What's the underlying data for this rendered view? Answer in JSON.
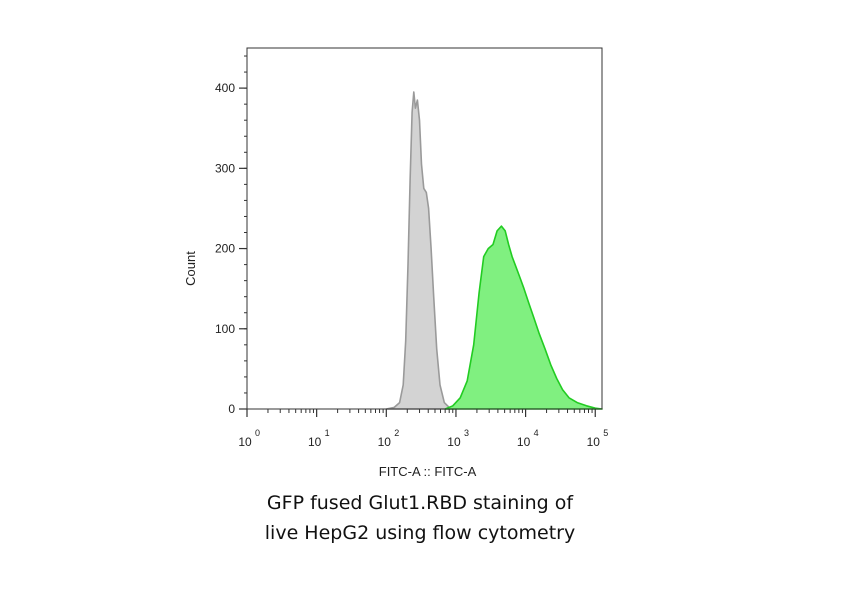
{
  "caption": {
    "line1": "GFP fused Glut1.RBD staining of",
    "line2": "live HepG2 using flow cytometry"
  },
  "chart_data": {
    "type": "area",
    "title": "",
    "xlabel": "FITC-A :: FITC-A",
    "ylabel": "Count",
    "xscale": "log",
    "xlim": [
      1,
      125000
    ],
    "ylim": [
      0,
      450
    ],
    "y_ticks": [
      0,
      100,
      200,
      300,
      400
    ],
    "x_ticks": [
      {
        "base": "10",
        "exp": "0",
        "value": 1
      },
      {
        "base": "10",
        "exp": "1",
        "value": 10
      },
      {
        "base": "10",
        "exp": "2",
        "value": 100
      },
      {
        "base": "10",
        "exp": "3",
        "value": 1000
      },
      {
        "base": "10",
        "exp": "4",
        "value": 10000
      },
      {
        "base": "10",
        "exp": "5",
        "value": 100000
      }
    ],
    "grid": false,
    "series": [
      {
        "color_fill": "#d3d3d3",
        "color_line": "#9a9a9a",
        "points": [
          [
            100,
            0
          ],
          [
            130,
            2
          ],
          [
            155,
            8
          ],
          [
            175,
            30
          ],
          [
            190,
            85
          ],
          [
            205,
            180
          ],
          [
            220,
            285
          ],
          [
            235,
            370
          ],
          [
            248,
            395
          ],
          [
            262,
            375
          ],
          [
            280,
            385
          ],
          [
            300,
            360
          ],
          [
            320,
            305
          ],
          [
            345,
            275
          ],
          [
            375,
            270
          ],
          [
            405,
            250
          ],
          [
            440,
            200
          ],
          [
            480,
            140
          ],
          [
            530,
            75
          ],
          [
            590,
            30
          ],
          [
            680,
            8
          ],
          [
            800,
            2
          ],
          [
            950,
            0
          ]
        ]
      },
      {
        "color_fill": "#80f080",
        "color_line": "#22cc22",
        "points": [
          [
            700,
            0
          ],
          [
            900,
            4
          ],
          [
            1150,
            14
          ],
          [
            1450,
            35
          ],
          [
            1800,
            80
          ],
          [
            2150,
            145
          ],
          [
            2500,
            190
          ],
          [
            2900,
            200
          ],
          [
            3400,
            205
          ],
          [
            3900,
            222
          ],
          [
            4500,
            228
          ],
          [
            5100,
            222
          ],
          [
            5700,
            205
          ],
          [
            6400,
            190
          ],
          [
            7200,
            178
          ],
          [
            8200,
            165
          ],
          [
            9500,
            150
          ],
          [
            11000,
            133
          ],
          [
            13000,
            115
          ],
          [
            15500,
            95
          ],
          [
            19000,
            75
          ],
          [
            23000,
            55
          ],
          [
            28000,
            38
          ],
          [
            34000,
            24
          ],
          [
            42000,
            14
          ],
          [
            55000,
            8
          ],
          [
            75000,
            4
          ],
          [
            100000,
            1
          ],
          [
            125000,
            0
          ]
        ]
      }
    ]
  }
}
